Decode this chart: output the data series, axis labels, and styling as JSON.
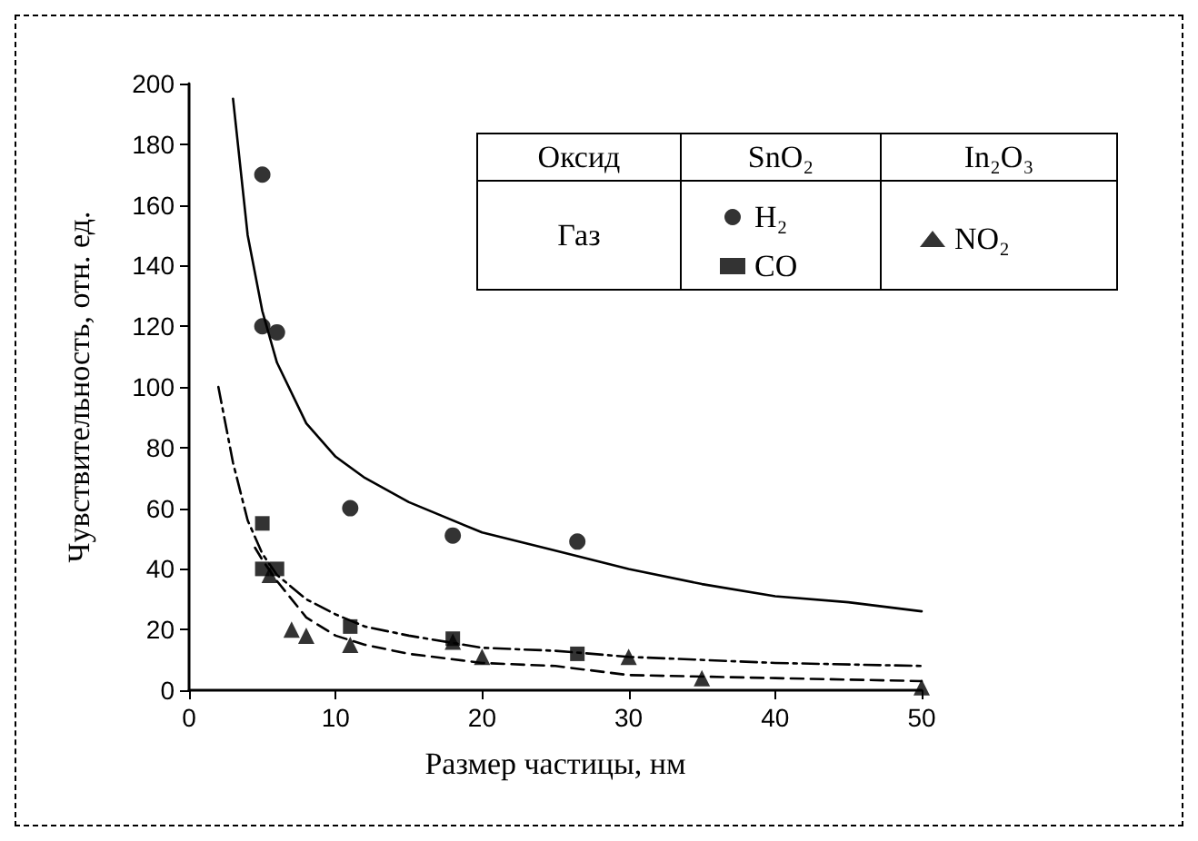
{
  "chart_data": {
    "type": "scatter",
    "xlabel": "Размер частицы, нм",
    "ylabel": "Чувствительность, отн. ед.",
    "xlim": [
      0,
      50
    ],
    "xticks": [
      0,
      10,
      20,
      30,
      40,
      50
    ],
    "ylim": [
      0,
      200
    ],
    "yticks": [
      0,
      20,
      40,
      60,
      80,
      100,
      120,
      140,
      160,
      180,
      200
    ],
    "grid": false,
    "legend": "top right",
    "annotations": [
      "Оксид",
      "Газ",
      "SnO₂",
      "In₂O₃"
    ],
    "series": [
      {
        "name": "H₂",
        "marker": "circle",
        "color": "#000000",
        "x": [
          5,
          5,
          6,
          11,
          18,
          26.5
        ],
        "values": [
          170,
          120,
          118,
          60,
          51,
          49
        ]
      },
      {
        "name": "CO",
        "marker": "square",
        "color": "#000000",
        "x": [
          5,
          5,
          6,
          11,
          18,
          26.5
        ],
        "values": [
          55,
          40,
          40,
          21,
          17,
          12
        ]
      },
      {
        "name": "NO₂",
        "marker": "triangle",
        "color": "#000000",
        "x": [
          5.5,
          7,
          8,
          11,
          18,
          20,
          30,
          35,
          50
        ],
        "values": [
          38,
          20,
          18,
          15,
          16,
          11,
          11,
          4,
          1
        ]
      },
      {
        "type": "line",
        "line_style": "solid",
        "marker": "none",
        "color": "#000000",
        "x": [
          3,
          4,
          5,
          6,
          8,
          10,
          12,
          15,
          20,
          25,
          30,
          35,
          40,
          45,
          50
        ],
        "values": [
          195,
          150,
          125,
          108,
          88,
          77,
          70,
          62,
          52,
          46,
          40,
          35,
          31,
          29,
          26
        ]
      },
      {
        "type": "line",
        "line_style": "dashdot",
        "marker": "none",
        "color": "#000000",
        "x": [
          2,
          3,
          4,
          5,
          6,
          8,
          10,
          12,
          15,
          20,
          25,
          30,
          40,
          50
        ],
        "values": [
          100,
          75,
          56,
          45,
          38,
          30,
          25,
          21,
          18,
          14,
          13,
          11,
          9,
          8
        ]
      },
      {
        "type": "line",
        "line_style": "dashed",
        "marker": "none",
        "color": "#000000",
        "x": [
          4.5,
          5,
          6,
          8,
          10,
          12,
          15,
          20,
          25,
          30,
          40,
          50
        ],
        "values": [
          47,
          43,
          36,
          24,
          18,
          15,
          12,
          9,
          8,
          5,
          4,
          3
        ]
      }
    ]
  }
}
